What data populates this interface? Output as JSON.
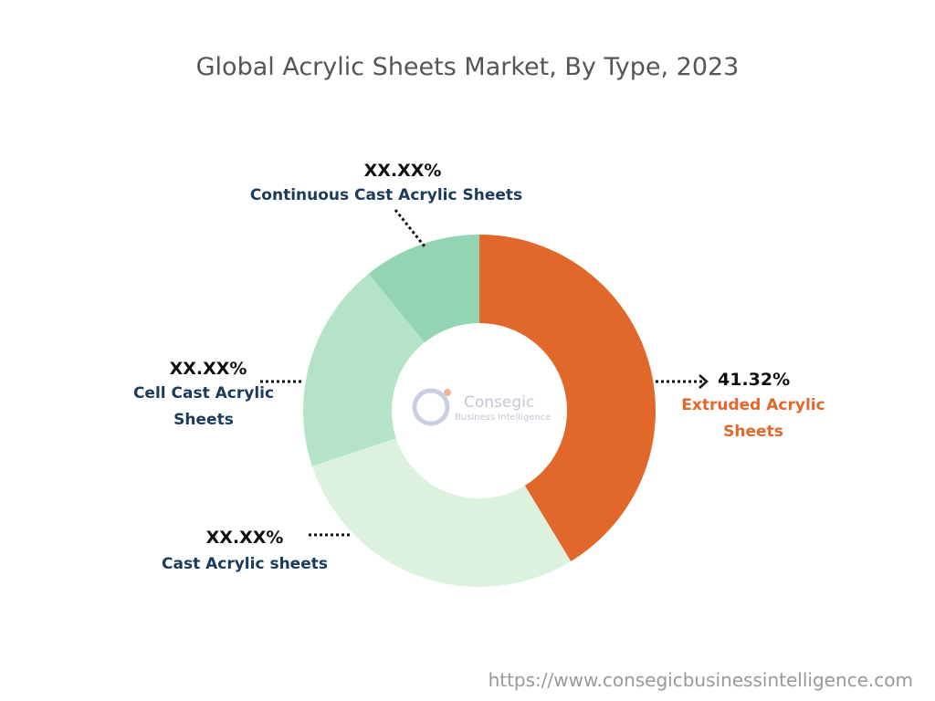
{
  "chart_data": {
    "type": "donut",
    "title": "Global Acrylic Sheets Market, By Type, 2023",
    "categories": [
      "Extruded Acrylic Sheets",
      "Cast Acrylic sheets",
      "Cell Cast Acrylic Sheets",
      "Continuous Cast Acrylic Sheets"
    ],
    "values": [
      41.32,
      28.6,
      19.3,
      10.8
    ],
    "value_labels": [
      "41.32%",
      "XX.XX%",
      "XX.XX%",
      "XX.XX%"
    ],
    "colors": [
      "#e2672a",
      "#dcf2df",
      "#b5e3c8",
      "#93d4b3"
    ],
    "label_colors": [
      "#e2672a",
      "#1b3a5c",
      "#1b3a5c",
      "#1b3a5c"
    ]
  },
  "logo": {
    "name": "Consegic",
    "tagline": "Business Intelligence"
  },
  "source": "https://www.consegicbusinessintelligence.com"
}
